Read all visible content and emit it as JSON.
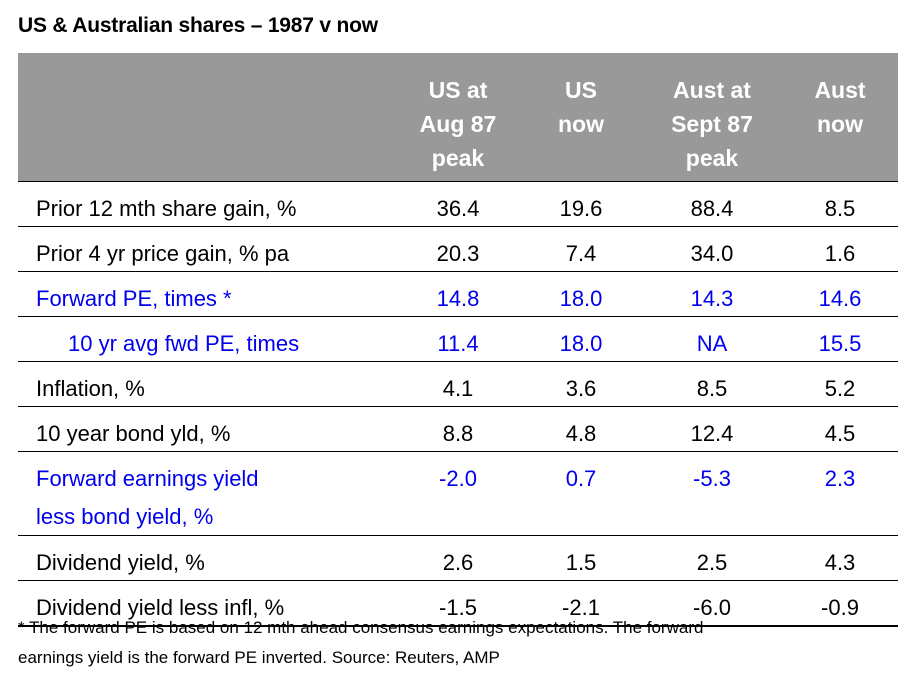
{
  "title": "US & Australian shares – 1987 v now",
  "table": {
    "headers": [
      {
        "l1": "US at",
        "l2": "Aug 87",
        "l3": "peak"
      },
      {
        "l1": "US",
        "l2": "now",
        "l3": ""
      },
      {
        "l1": "Aust at",
        "l2": "Sept 87",
        "l3": "peak"
      },
      {
        "l1": "Aust",
        "l2": "now",
        "l3": ""
      }
    ],
    "rows": [
      {
        "label": "Prior 12 mth share gain, %",
        "label2": "",
        "values": [
          "36.4",
          "19.6",
          "88.4",
          "8.5"
        ]
      },
      {
        "label": "Prior 4 yr price gain, % pa",
        "label2": "",
        "values": [
          "20.3",
          "7.4",
          "34.0",
          "1.6"
        ]
      },
      {
        "label": "Forward PE, times *",
        "label2": "",
        "values": [
          "14.8",
          "18.0",
          "14.3",
          "14.6"
        ]
      },
      {
        "label": "10 yr avg fwd PE, times",
        "label2": "",
        "values": [
          "11.4",
          "18.0",
          "NA",
          "15.5"
        ]
      },
      {
        "label": "Inflation, %",
        "label2": "",
        "values": [
          "4.1",
          "3.6",
          "8.5",
          "5.2"
        ]
      },
      {
        "label": "10 year bond yld, %",
        "label2": "",
        "values": [
          "8.8",
          "4.8",
          "12.4",
          "4.5"
        ]
      },
      {
        "label": "Forward earnings yield",
        "label2": "less bond yield, %",
        "values": [
          "-2.0",
          "0.7",
          "-5.3",
          "2.3"
        ]
      },
      {
        "label": "Dividend yield, %",
        "label2": "",
        "values": [
          "2.6",
          "1.5",
          "2.5",
          "4.3"
        ]
      },
      {
        "label": "Dividend yield less infl, %",
        "label2": "",
        "values": [
          "-1.5",
          "-2.1",
          "-6.0",
          "-0.9"
        ]
      }
    ]
  },
  "footnote": {
    "line1": "* The forward PE is based on 12 mth ahead consensus earnings expectations. The forward",
    "line2": "earnings yield is the forward PE inverted. Source: Reuters, AMP"
  },
  "colors": {
    "header_bg": "#999999",
    "header_text": "#ffffff",
    "highlight_text": "#0000ee"
  }
}
